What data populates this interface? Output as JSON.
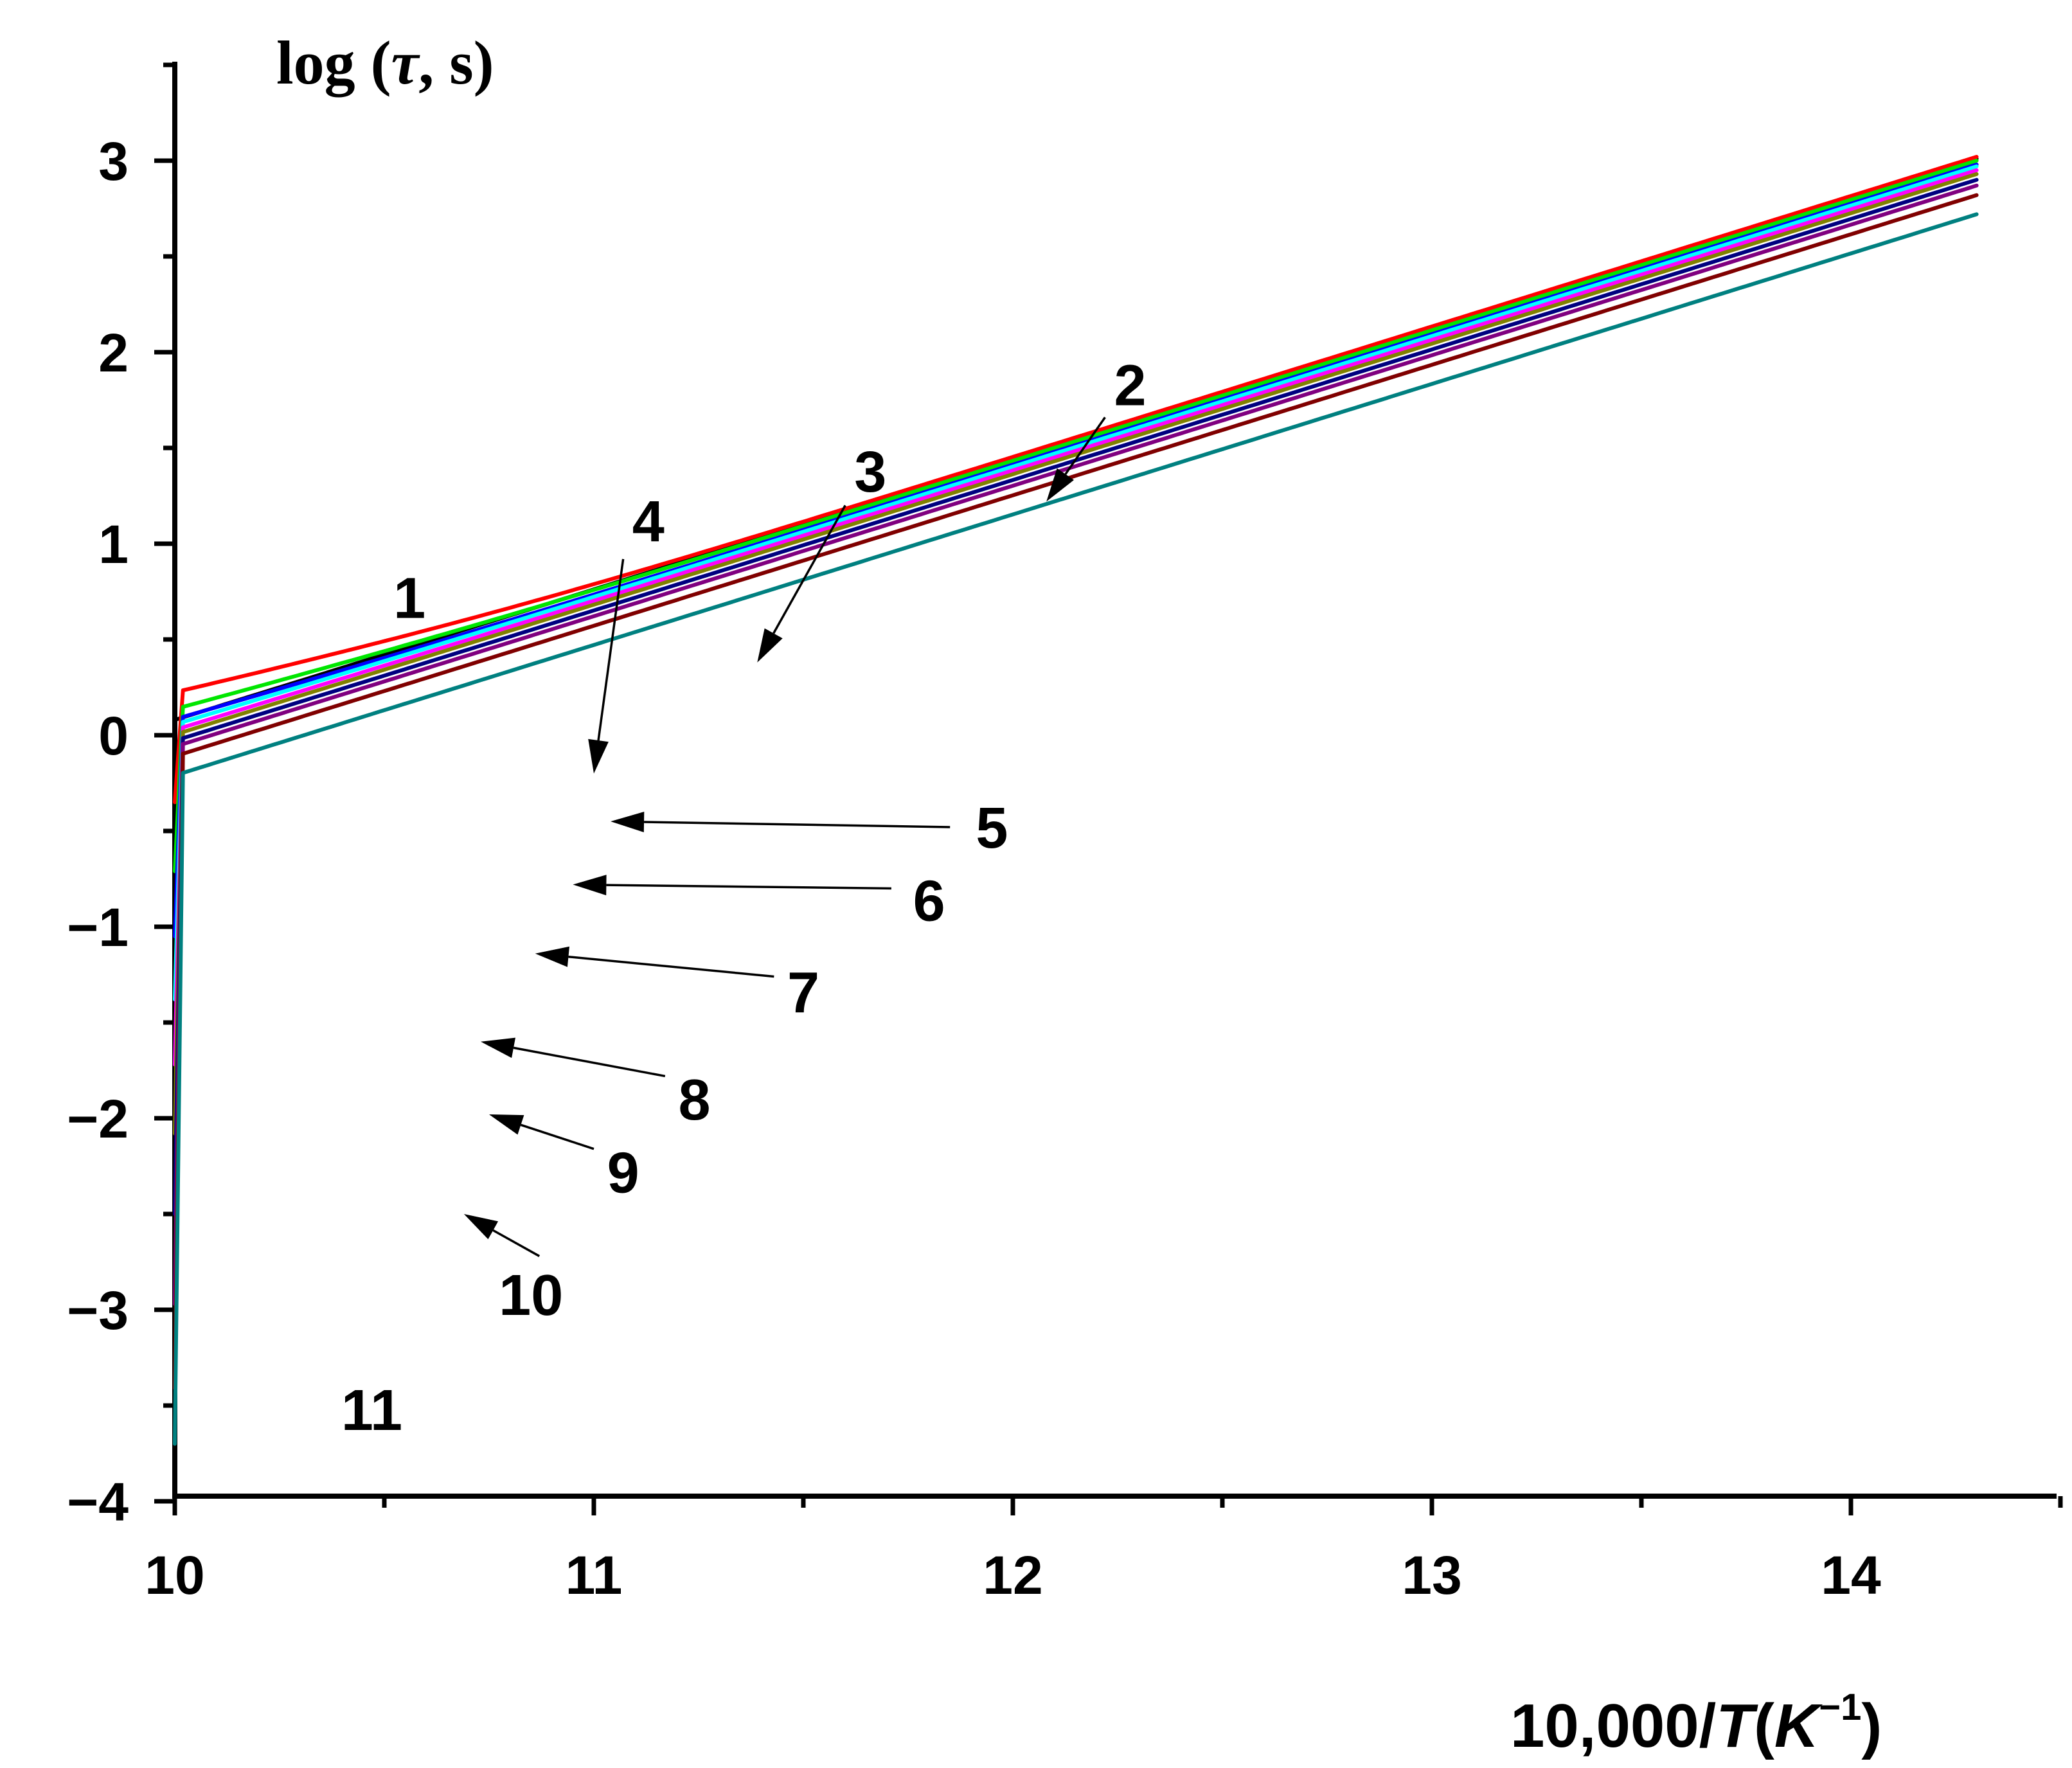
{
  "chart_data": {
    "type": "line",
    "title": "",
    "ylabel": "log (τ, s)",
    "ylabel_parts": {
      "prefix": "log (",
      "symbol": "τ",
      "suffix": ", s)"
    },
    "xlabel": "10,000/T(K⁻¹)",
    "xlabel_parts": {
      "prefix": "10,000/",
      "var": "T",
      "unit_open": "(",
      "unit": "K",
      "sup": "−1",
      "unit_close": ")"
    },
    "xlim": [
      10,
      14.5
    ],
    "ylim": [
      -4,
      3.5
    ],
    "x_ticks": [
      10,
      11,
      12,
      13,
      14
    ],
    "x_tick_labels": [
      "10",
      "11",
      "12",
      "13",
      "14"
    ],
    "x_minor_ticks": [
      10.5,
      11.5,
      12.5,
      13.5
    ],
    "y_ticks": [
      -4,
      -3,
      -2,
      -1,
      0,
      1,
      2,
      3
    ],
    "y_tick_labels": [
      "−4",
      "−3",
      "−2",
      "−1",
      "0",
      "1",
      "2",
      "3"
    ],
    "y_minor_ticks": [
      -3.5,
      -2.5,
      -1.5,
      -0.5,
      0.5,
      1.5,
      2.5
    ],
    "x_end": 14.3,
    "grid": false,
    "series": [
      {
        "name": "1",
        "color": "#000000",
        "tau1": 10.2,
        "tau2": 0,
        "x": [
          10,
          14.3
        ],
        "y": [
          0.08,
          3.01
        ],
        "label_pos": [
          10.56,
          0.72
        ],
        "arrow": null
      },
      {
        "name": "2",
        "color": "#ff0000",
        "tau1": 10.2,
        "tau2": -0.3,
        "x": [
          10,
          14.3
        ],
        "y": [
          -0.35,
          3.02
        ],
        "label_pos": [
          12.28,
          1.83
        ],
        "arrow": {
          "from": [
            12.22,
            1.66
          ],
          "to": [
            12.08,
            1.22
          ]
        }
      },
      {
        "name": "3",
        "color": "#00e600",
        "tau1": 10.2,
        "tau2": -0.8,
        "x": [
          10,
          14.3
        ],
        "y": [
          -0.71,
          3.0
        ],
        "label_pos": [
          11.66,
          1.38
        ],
        "arrow": {
          "from": [
            11.6,
            1.2
          ],
          "to": [
            11.39,
            0.38
          ]
        }
      },
      {
        "name": "4",
        "color": "#0000ff",
        "tau1": 10.2,
        "tau2": -1.2,
        "x": [
          10,
          14.3
        ],
        "y": [
          -1.05,
          2.98
        ],
        "label_pos": [
          11.13,
          1.12
        ],
        "arrow": {
          "from": [
            11.07,
            0.92
          ],
          "to": [
            11.0,
            -0.2
          ]
        }
      },
      {
        "name": "5",
        "color": "#00ffff",
        "tau1": 10.2,
        "tau2": -1.6,
        "x": [
          10,
          14.3
        ],
        "y": [
          -1.38,
          2.97
        ],
        "label_pos": [
          11.95,
          -0.48
        ],
        "arrow": {
          "from": [
            11.85,
            -0.48
          ],
          "to": [
            11.04,
            -0.45
          ]
        }
      },
      {
        "name": "6",
        "color": "#ff00ff",
        "tau1": 10.2,
        "tau2": -2.0,
        "x": [
          10,
          14.3
        ],
        "y": [
          -1.72,
          2.95
        ],
        "label_pos": [
          11.8,
          -0.86
        ],
        "arrow": {
          "from": [
            11.71,
            -0.8
          ],
          "to": [
            10.95,
            -0.78
          ]
        }
      },
      {
        "name": "7",
        "color": "#808000",
        "tau1": 10.2,
        "tau2": -2.4,
        "x": [
          10,
          14.3
        ],
        "y": [
          -2.08,
          2.93
        ],
        "label_pos": [
          11.5,
          -1.34
        ],
        "arrow": {
          "from": [
            11.43,
            -1.26
          ],
          "to": [
            10.86,
            -1.14
          ]
        }
      },
      {
        "name": "8",
        "color": "#000080",
        "tau1": 10.2,
        "tau2": -2.8,
        "x": [
          10,
          14.3
        ],
        "y": [
          -2.5,
          2.9
        ],
        "label_pos": [
          11.24,
          -1.9
        ],
        "arrow": {
          "from": [
            11.17,
            -1.78
          ],
          "to": [
            10.73,
            -1.6
          ]
        }
      },
      {
        "name": "9",
        "color": "#800080",
        "tau1": 10.2,
        "tau2": -3.3,
        "x": [
          10,
          14.3
        ],
        "y": [
          -2.97,
          2.87
        ],
        "label_pos": [
          11.07,
          -2.28
        ],
        "arrow": {
          "from": [
            11.0,
            -2.16
          ],
          "to": [
            10.75,
            -1.98
          ]
        }
      },
      {
        "name": "10",
        "color": "#800000",
        "tau1": 10.2,
        "tau2": -3.7,
        "x": [
          10,
          14.3
        ],
        "y": [
          -3.41,
          2.82
        ],
        "label_pos": [
          10.85,
          -2.92
        ],
        "arrow": {
          "from": [
            10.87,
            -2.72
          ],
          "to": [
            10.69,
            -2.5
          ]
        }
      },
      {
        "name": "11",
        "color": "#008080",
        "tau1": 10.2,
        "tau2": -4.0,
        "x": [
          10,
          14.3
        ],
        "y": [
          -3.7,
          2.72
        ],
        "label_pos": [
          10.47,
          -3.52
        ],
        "arrow": null
      }
    ]
  }
}
